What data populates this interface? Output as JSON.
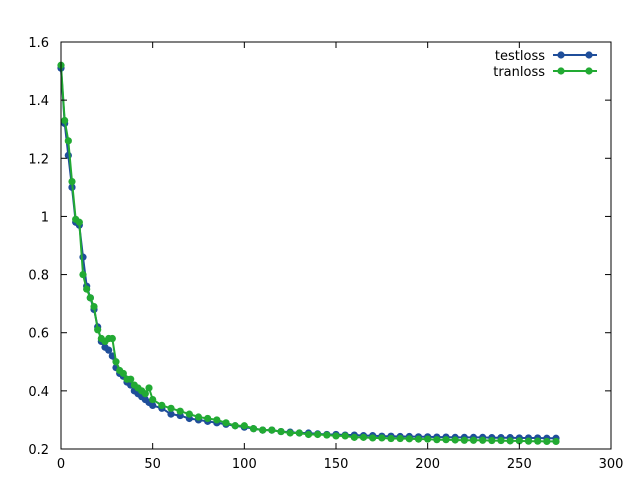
{
  "chart_data": {
    "type": "line",
    "title": "",
    "xlabel": "",
    "ylabel": "",
    "xlim": [
      0,
      300
    ],
    "ylim": [
      0.2,
      1.6
    ],
    "xticks": [
      0,
      50,
      100,
      150,
      200,
      250,
      300
    ],
    "yticks": [
      0.2,
      0.4,
      0.6,
      0.8,
      1,
      1.2,
      1.4,
      1.6
    ],
    "grid": false,
    "legend": "top-right",
    "series": [
      {
        "name": "testloss",
        "color": "#1f4e9a",
        "x": [
          0,
          2,
          4,
          6,
          8,
          10,
          12,
          14,
          16,
          18,
          20,
          22,
          24,
          26,
          28,
          30,
          32,
          34,
          36,
          38,
          40,
          42,
          44,
          46,
          48,
          50,
          55,
          60,
          65,
          70,
          75,
          80,
          85,
          90,
          95,
          100,
          105,
          110,
          115,
          120,
          125,
          130,
          135,
          140,
          145,
          150,
          155,
          160,
          165,
          170,
          175,
          180,
          185,
          190,
          195,
          200,
          205,
          210,
          215,
          220,
          225,
          230,
          235,
          240,
          245,
          250,
          255,
          260,
          265,
          270
        ],
        "y": [
          1.51,
          1.32,
          1.21,
          1.1,
          0.98,
          0.97,
          0.86,
          0.76,
          0.72,
          0.68,
          0.62,
          0.57,
          0.55,
          0.54,
          0.52,
          0.48,
          0.46,
          0.45,
          0.43,
          0.42,
          0.4,
          0.39,
          0.38,
          0.37,
          0.36,
          0.35,
          0.34,
          0.32,
          0.315,
          0.305,
          0.3,
          0.295,
          0.29,
          0.285,
          0.28,
          0.275,
          0.27,
          0.265,
          0.265,
          0.26,
          0.258,
          0.255,
          0.255,
          0.252,
          0.25,
          0.25,
          0.248,
          0.248,
          0.246,
          0.246,
          0.244,
          0.244,
          0.243,
          0.243,
          0.242,
          0.242,
          0.241,
          0.241,
          0.24,
          0.24,
          0.24,
          0.24,
          0.239,
          0.239,
          0.239,
          0.238,
          0.238,
          0.238,
          0.237,
          0.237
        ]
      },
      {
        "name": "tranloss",
        "color": "#22aa33",
        "x": [
          0,
          2,
          4,
          6,
          8,
          10,
          12,
          14,
          16,
          18,
          20,
          22,
          24,
          26,
          28,
          30,
          32,
          34,
          36,
          38,
          40,
          42,
          44,
          46,
          48,
          50,
          55,
          60,
          65,
          70,
          75,
          80,
          85,
          90,
          95,
          100,
          105,
          110,
          115,
          120,
          125,
          130,
          135,
          140,
          145,
          150,
          155,
          160,
          165,
          170,
          175,
          180,
          185,
          190,
          195,
          200,
          205,
          210,
          215,
          220,
          225,
          230,
          235,
          240,
          245,
          250,
          255,
          260,
          265,
          270
        ],
        "y": [
          1.52,
          1.33,
          1.26,
          1.12,
          0.99,
          0.98,
          0.8,
          0.75,
          0.72,
          0.69,
          0.61,
          0.58,
          0.57,
          0.58,
          0.58,
          0.5,
          0.47,
          0.46,
          0.44,
          0.44,
          0.42,
          0.41,
          0.4,
          0.39,
          0.41,
          0.37,
          0.35,
          0.34,
          0.33,
          0.32,
          0.31,
          0.305,
          0.3,
          0.29,
          0.28,
          0.28,
          0.27,
          0.265,
          0.265,
          0.26,
          0.255,
          0.255,
          0.25,
          0.25,
          0.248,
          0.245,
          0.245,
          0.24,
          0.24,
          0.238,
          0.238,
          0.236,
          0.236,
          0.235,
          0.234,
          0.234,
          0.232,
          0.232,
          0.231,
          0.23,
          0.23,
          0.23,
          0.229,
          0.229,
          0.228,
          0.228,
          0.227,
          0.227,
          0.226,
          0.226
        ]
      }
    ]
  }
}
